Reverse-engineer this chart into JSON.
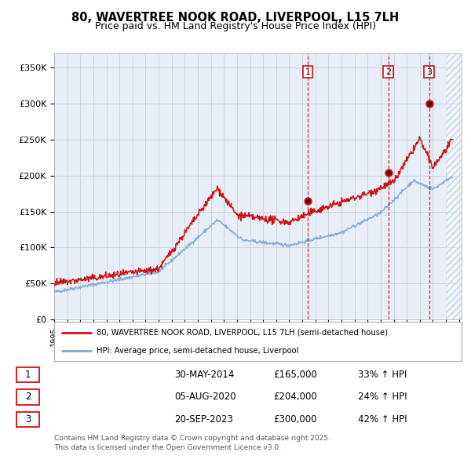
{
  "title": "80, WAVERTREE NOOK ROAD, LIVERPOOL, L15 7LH",
  "subtitle": "Price paid vs. HM Land Registry's House Price Index (HPI)",
  "title_fontsize": 10.5,
  "subtitle_fontsize": 9,
  "ylim": [
    0,
    370000
  ],
  "xlim_start": 1995,
  "xlim_end": 2026.2,
  "yticks": [
    0,
    50000,
    100000,
    150000,
    200000,
    250000,
    300000,
    350000
  ],
  "ytick_labels": [
    "£0",
    "£50K",
    "£100K",
    "£150K",
    "£200K",
    "£250K",
    "£300K",
    "£350K"
  ],
  "background_color": "#ffffff",
  "plot_bg_color": "#e8eef8",
  "grid_color": "#c8d0dc",
  "hpi_color": "#7baad4",
  "price_color": "#cc1111",
  "hatch_start": 2025.0,
  "sale1_x": 2014.42,
  "sale1_y": 165000,
  "sale2_x": 2020.59,
  "sale2_y": 204000,
  "sale3_x": 2023.72,
  "sale3_y": 300000,
  "sale1_label": "1",
  "sale2_label": "2",
  "sale3_label": "3",
  "legend_line1": "80, WAVERTREE NOOK ROAD, LIVERPOOL, L15 7LH (semi-detached house)",
  "legend_line2": "HPI: Average price, semi-detached house, Liverpool",
  "table_data": [
    [
      "1",
      "30-MAY-2014",
      "£165,000",
      "33% ↑ HPI"
    ],
    [
      "2",
      "05-AUG-2020",
      "£204,000",
      "24% ↑ HPI"
    ],
    [
      "3",
      "20-SEP-2023",
      "£300,000",
      "42% ↑ HPI"
    ]
  ],
  "footnote": "Contains HM Land Registry data © Crown copyright and database right 2025.\nThis data is licensed under the Open Government Licence v3.0."
}
